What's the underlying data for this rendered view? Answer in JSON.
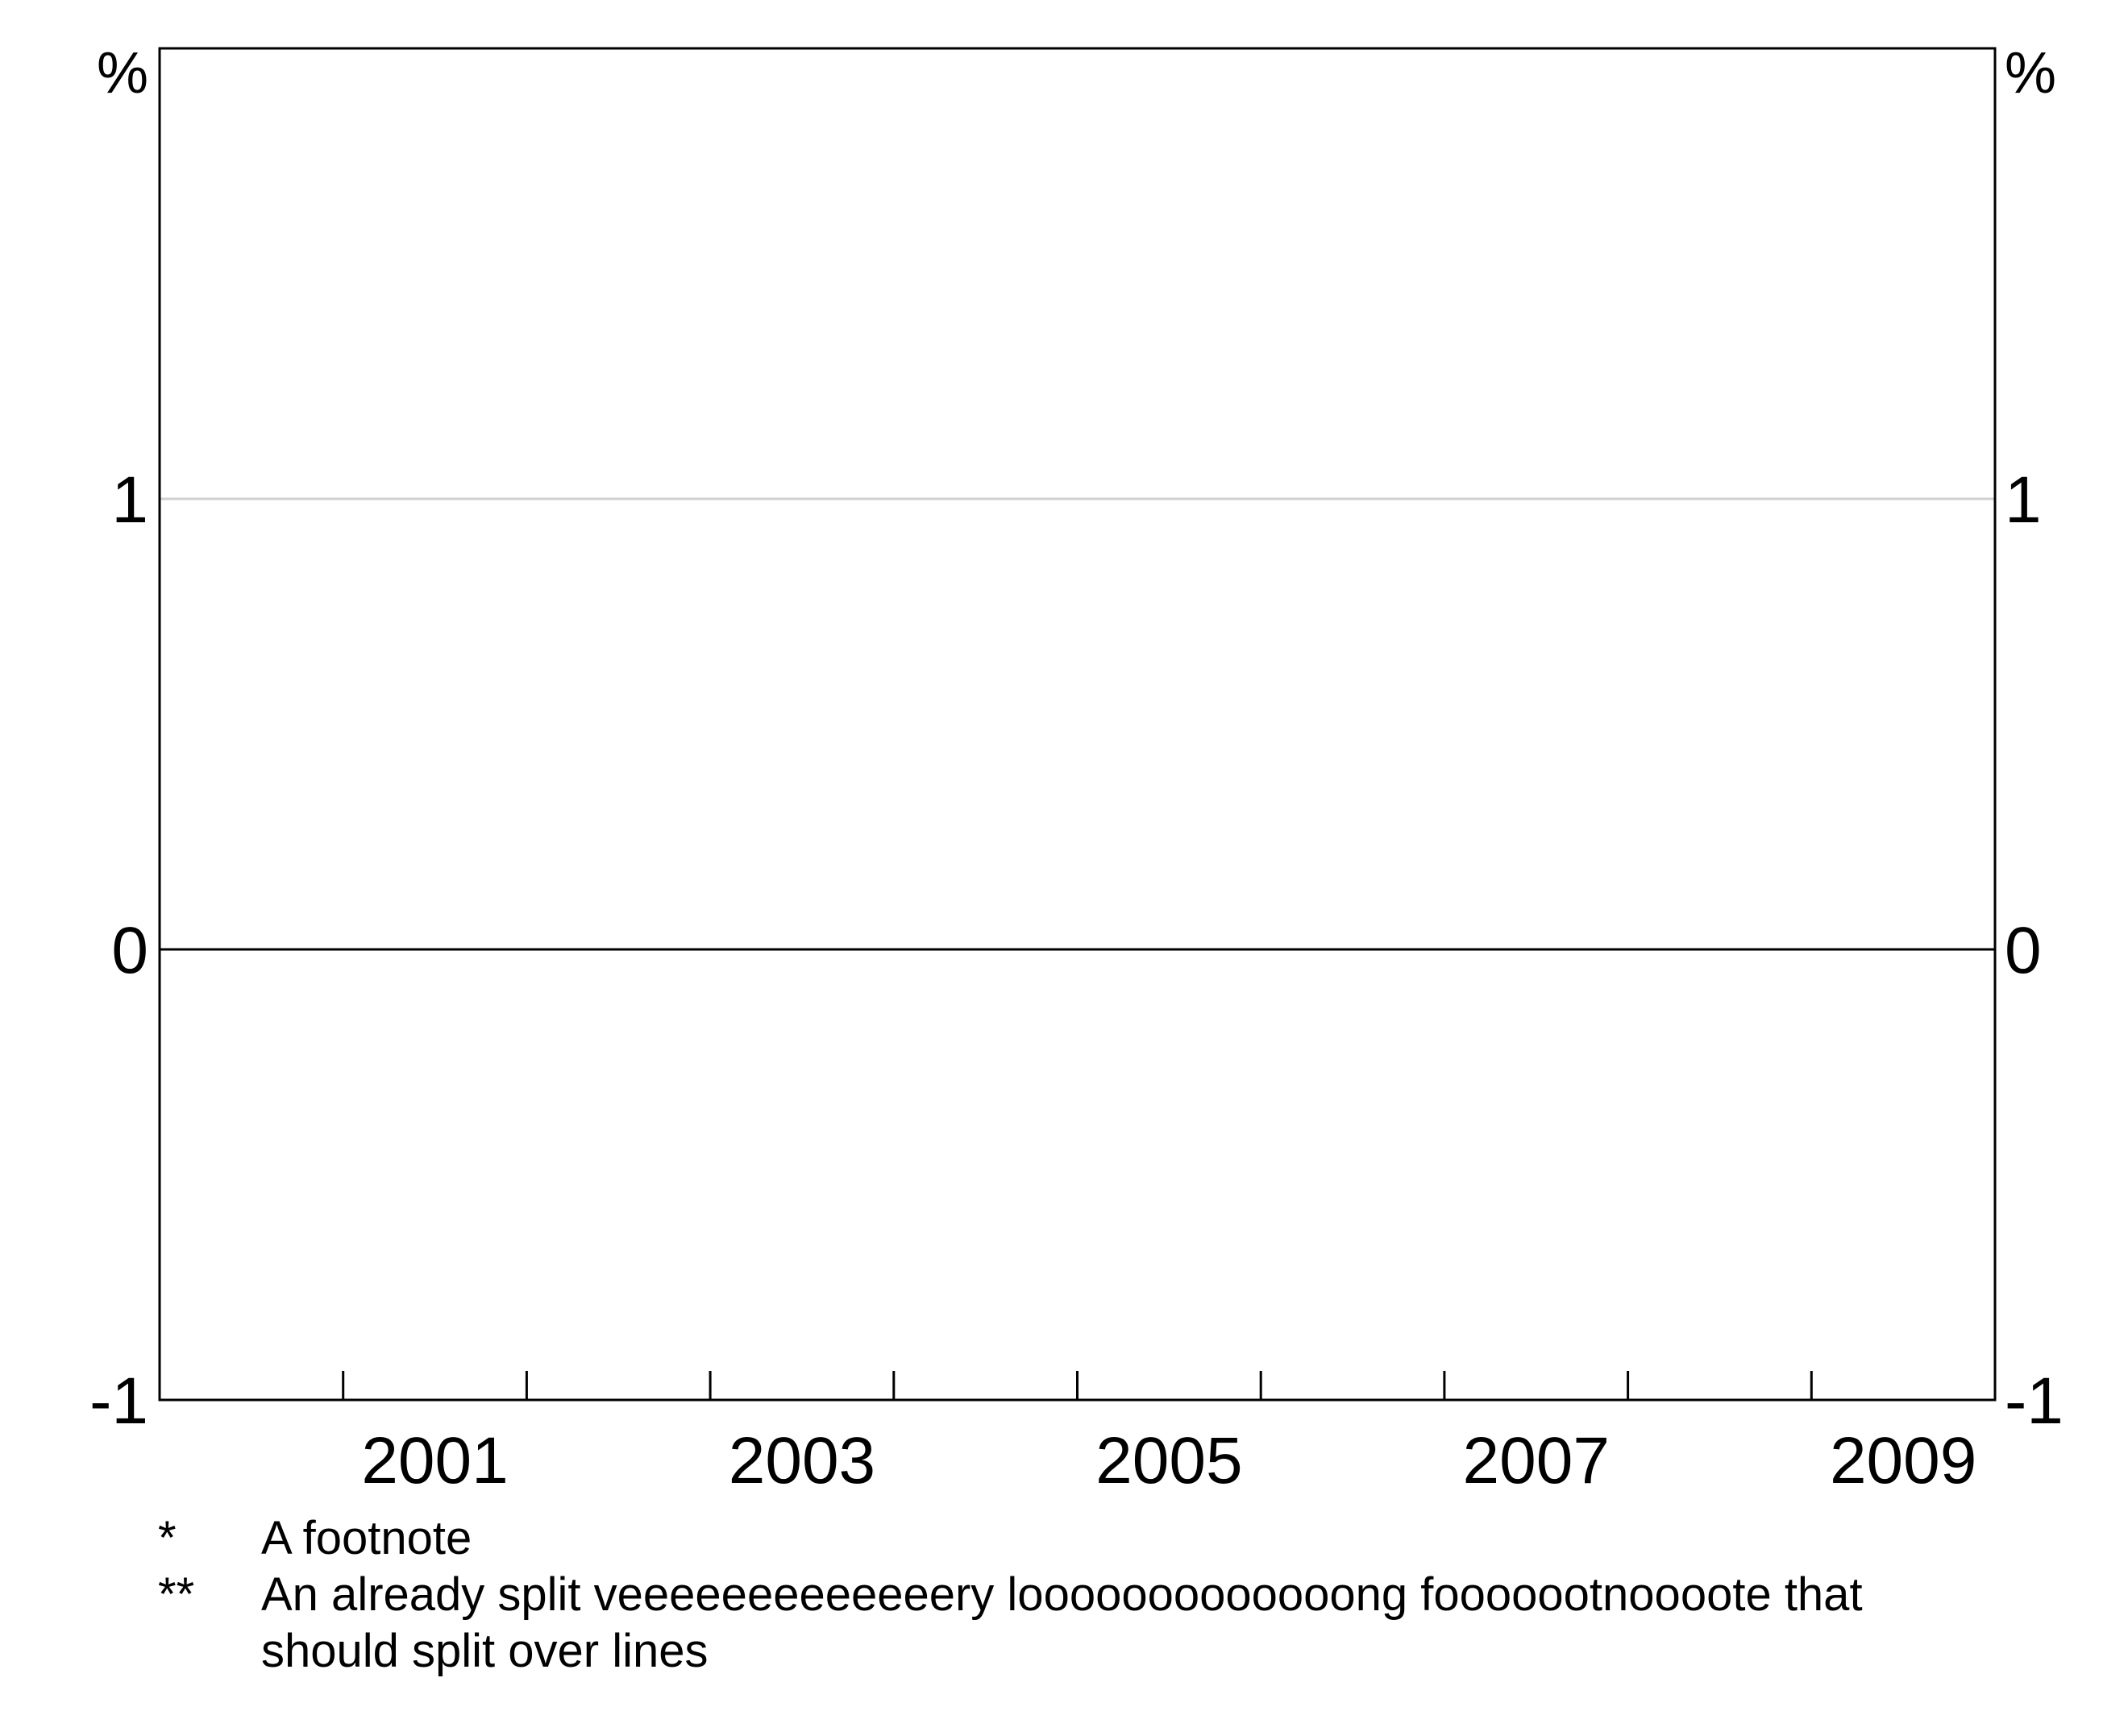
{
  "chart_data": {
    "type": "line",
    "title": "",
    "xlabel": "",
    "ylabel": "",
    "y_unit_left": "%",
    "y_unit_right": "%",
    "xlim": [
      2000,
      2010
    ],
    "ylim": [
      -1,
      2
    ],
    "x_ticks": [
      2001,
      2003,
      2005,
      2007,
      2009
    ],
    "y_ticks_left": [
      "-1",
      "0",
      "1"
    ],
    "y_ticks_right": [
      "-1",
      "0",
      "1"
    ],
    "y_tick_values": [
      -1,
      0,
      1
    ],
    "grid": true,
    "zero_line": true,
    "series": []
  },
  "footnotes": [
    {
      "symbol": "*",
      "text": "A footnote"
    },
    {
      "symbol": "**",
      "text": "An already split veeeeeeeeeeeeery looooooooooooong fooooootnoooote that should split over lines"
    }
  ]
}
